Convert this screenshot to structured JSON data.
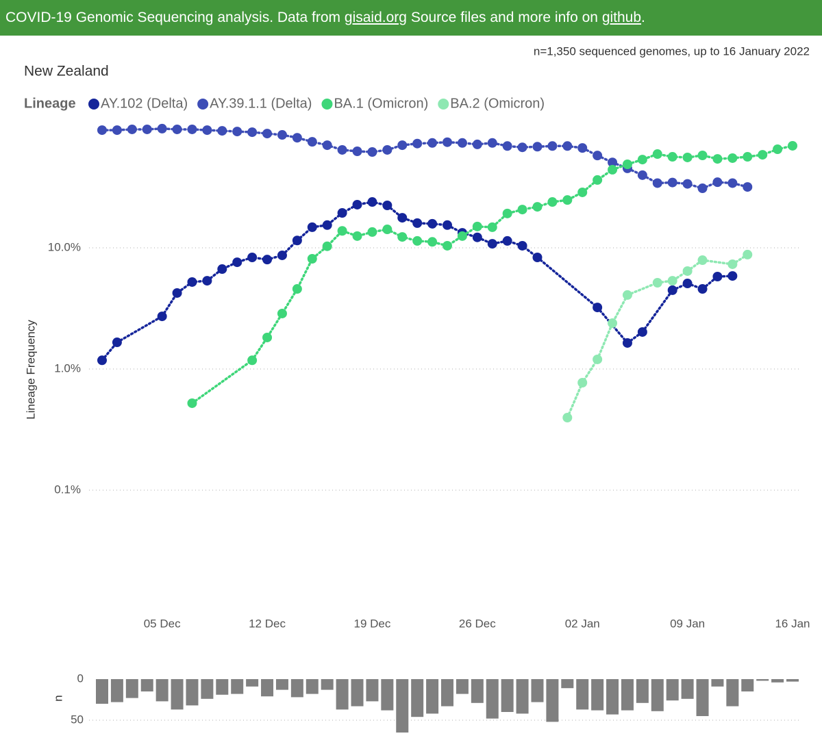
{
  "header": {
    "text": "COVID-19 Genomic Sequencing analysis. Data from",
    "link1": "gisaid.org",
    "text2": "Source files and more info on",
    "link2": "github",
    "end": "."
  },
  "chart_data": [
    {
      "type": "line",
      "title": "New Zealand",
      "subtitle": "n=1,350 sequenced genomes, up to 16 January 2022",
      "legend_title": "Lineage",
      "ylabel": "Lineage Frequency",
      "x": [
        "01 Dec",
        "02 Dec",
        "03 Dec",
        "04 Dec",
        "05 Dec",
        "06 Dec",
        "07 Dec",
        "08 Dec",
        "09 Dec",
        "10 Dec",
        "11 Dec",
        "12 Dec",
        "13 Dec",
        "14 Dec",
        "15 Dec",
        "16 Dec",
        "17 Dec",
        "18 Dec",
        "19 Dec",
        "20 Dec",
        "21 Dec",
        "22 Dec",
        "23 Dec",
        "24 Dec",
        "25 Dec",
        "26 Dec",
        "27 Dec",
        "28 Dec",
        "29 Dec",
        "30 Dec",
        "31 Dec",
        "01 Jan",
        "02 Jan",
        "03 Jan",
        "04 Jan",
        "05 Jan",
        "06 Jan",
        "07 Jan",
        "08 Jan",
        "09 Jan",
        "10 Jan",
        "11 Jan",
        "12 Jan",
        "13 Jan",
        "14 Jan",
        "15 Jan",
        "16 Jan"
      ],
      "xticks": [
        "05 Dec",
        "12 Dec",
        "19 Dec",
        "26 Dec",
        "02 Jan",
        "09 Jan",
        "16 Jan"
      ],
      "log_scale": true,
      "grid": true,
      "ylim": [
        0.01,
        100
      ],
      "yticks": [
        {
          "value": 0.1,
          "label": "0.1%"
        },
        {
          "value": 1,
          "label": "1.0%"
        },
        {
          "value": 10,
          "label": "10.0%"
        }
      ],
      "series": [
        {
          "name": "AY.102 (Delta)",
          "color": "#15259a",
          "values": [
            1.18,
            1.66,
            null,
            null,
            2.72,
            4.24,
            5.22,
            5.35,
            6.68,
            7.6,
            8.34,
            8.0,
            8.67,
            11.5,
            14.8,
            15.4,
            19.4,
            22.7,
            23.9,
            22.4,
            17.7,
            16.0,
            15.8,
            15.4,
            13.3,
            12.2,
            10.8,
            11.4,
            10.4,
            8.34,
            null,
            null,
            null,
            3.22,
            null,
            1.64,
            2.02,
            null,
            4.47,
            5.08,
            4.58,
            5.79,
            5.86,
            null,
            null,
            null,
            null
          ]
        },
        {
          "name": "AY.39.1.1 (Delta)",
          "color": "#3d4db6",
          "values": [
            93.6,
            93.6,
            95.0,
            95.0,
            96.3,
            95.0,
            95.0,
            93.6,
            92.4,
            91.2,
            90.0,
            87.7,
            85.5,
            81.0,
            75.0,
            70.3,
            64.3,
            62.6,
            61.8,
            64.3,
            70.3,
            72.5,
            73.4,
            74.4,
            73.4,
            71.4,
            73.4,
            69.2,
            67.5,
            68.3,
            69.2,
            69.2,
            66.7,
            57.8,
            50.7,
            45.3,
            39.8,
            34.2,
            34.6,
            33.7,
            31.0,
            34.8,
            34.2,
            31.8,
            null,
            null,
            null
          ]
        },
        {
          "name": "BA.1 (Omicron)",
          "color": "#3ed679",
          "values": [
            null,
            null,
            null,
            null,
            null,
            null,
            0.522,
            null,
            null,
            null,
            1.18,
            1.82,
            2.87,
            4.58,
            8.12,
            10.3,
            13.8,
            12.5,
            13.5,
            14.2,
            12.3,
            11.4,
            11.2,
            10.4,
            12.5,
            15.0,
            14.8,
            19.2,
            20.7,
            21.8,
            23.9,
            24.8,
            28.7,
            36.3,
            44.1,
            48.9,
            53.5,
            59.4,
            56.4,
            55.7,
            57.9,
            54.2,
            55.0,
            56.4,
            58.6,
            65.1,
            69.5
          ]
        },
        {
          "name": "BA.2 (Omicron)",
          "color": "#8ee8b2",
          "values": [
            null,
            null,
            null,
            null,
            null,
            null,
            null,
            null,
            null,
            null,
            null,
            null,
            null,
            null,
            null,
            null,
            null,
            null,
            null,
            null,
            null,
            null,
            null,
            null,
            null,
            null,
            null,
            null,
            null,
            null,
            null,
            0.397,
            0.771,
            1.2,
            2.39,
            4.08,
            null,
            5.15,
            5.35,
            6.43,
            7.91,
            null,
            7.32,
            8.79,
            null,
            null,
            null
          ]
        }
      ]
    },
    {
      "type": "bar",
      "ylabel": "n",
      "color": "#808080",
      "ylim": [
        0,
        70
      ],
      "yticks": [
        0,
        50
      ],
      "grid": true,
      "values": [
        30,
        28,
        23,
        15,
        27,
        37,
        32,
        24,
        19,
        18,
        9,
        21,
        13,
        22,
        18,
        13,
        37,
        33,
        27,
        38,
        65,
        46,
        42,
        33,
        18,
        29,
        48,
        40,
        42,
        28,
        52,
        11,
        37,
        38,
        43,
        38,
        29,
        39,
        26,
        24,
        45,
        9,
        33,
        15,
        2,
        4,
        3
      ]
    }
  ]
}
